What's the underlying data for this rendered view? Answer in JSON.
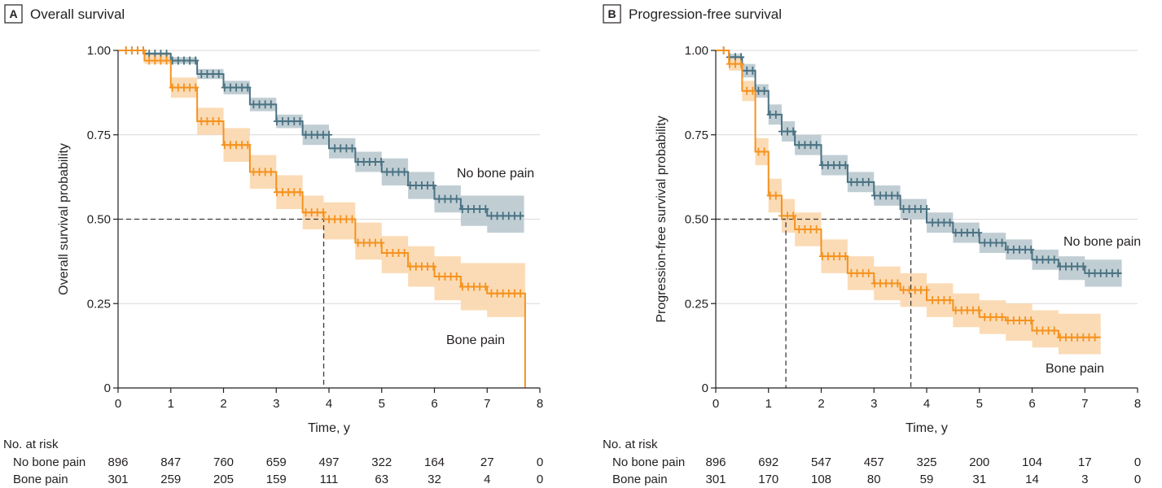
{
  "colors": {
    "no_bone_pain": "#4a7282",
    "no_bone_pain_band": "#b9c9cf",
    "bone_pain": "#f5921e",
    "bone_pain_band": "#fbd7ad"
  },
  "chart_data": [
    {
      "type": "line",
      "panel_letter": "A",
      "title": "Overall survival",
      "xlabel": "Time, y",
      "ylabel": "Overall survival probability",
      "xlim": [
        0,
        8
      ],
      "ylim": [
        0,
        1
      ],
      "x_ticks": [
        "0",
        "1",
        "2",
        "3",
        "4",
        "5",
        "6",
        "7",
        "8"
      ],
      "y_ticks": [
        "0",
        "0.25",
        "0.50",
        "0.75",
        "1.00"
      ],
      "grid": "horizontal",
      "series": [
        {
          "name": "No bone pain",
          "color": "#4a7282",
          "x": [
            0,
            0.5,
            1,
            1.5,
            2,
            2.5,
            3,
            3.5,
            4,
            4.5,
            5,
            5.5,
            6,
            6.5,
            7,
            7.5,
            7.7
          ],
          "y": [
            1.0,
            0.99,
            0.97,
            0.93,
            0.89,
            0.84,
            0.79,
            0.75,
            0.71,
            0.67,
            0.64,
            0.6,
            0.56,
            0.53,
            0.51,
            0.51,
            0.51
          ],
          "ci_low": [
            1.0,
            0.985,
            0.96,
            0.915,
            0.87,
            0.82,
            0.77,
            0.72,
            0.68,
            0.64,
            0.6,
            0.56,
            0.52,
            0.48,
            0.46,
            0.46,
            0.46
          ],
          "ci_high": [
            1.0,
            0.995,
            0.98,
            0.945,
            0.91,
            0.86,
            0.81,
            0.78,
            0.74,
            0.7,
            0.68,
            0.64,
            0.6,
            0.57,
            0.57,
            0.57,
            0.57
          ]
        },
        {
          "name": "Bone pain",
          "color": "#f5921e",
          "x": [
            0,
            0.5,
            1,
            1.5,
            2,
            2.5,
            3,
            3.5,
            3.9,
            4.5,
            5,
            5.5,
            6,
            6.5,
            7,
            7.5,
            7.72,
            7.72
          ],
          "y": [
            1.0,
            0.97,
            0.89,
            0.79,
            0.72,
            0.64,
            0.58,
            0.52,
            0.5,
            0.43,
            0.4,
            0.36,
            0.33,
            0.3,
            0.28,
            0.28,
            0.28,
            0.0
          ],
          "ci_low": [
            1.0,
            0.96,
            0.86,
            0.75,
            0.67,
            0.59,
            0.53,
            0.47,
            0.44,
            0.38,
            0.34,
            0.3,
            0.26,
            0.23,
            0.21,
            0.21,
            0.21,
            0.21
          ],
          "ci_high": [
            1.0,
            0.99,
            0.92,
            0.83,
            0.77,
            0.69,
            0.63,
            0.57,
            0.55,
            0.49,
            0.45,
            0.42,
            0.39,
            0.37,
            0.37,
            0.37,
            0.37,
            0.37
          ]
        }
      ],
      "medians": [
        3.9
      ],
      "series_labels": [
        "No bone pain",
        "Bone pain"
      ],
      "at_risk": {
        "heading": "No. at risk",
        "rows": [
          {
            "label": "No bone pain",
            "values": [
              "896",
              "847",
              "760",
              "659",
              "497",
              "322",
              "164",
              "27",
              "0"
            ]
          },
          {
            "label": "Bone pain",
            "values": [
              "301",
              "259",
              "205",
              "159",
              "111",
              "63",
              "32",
              "4",
              "0"
            ]
          }
        ]
      }
    },
    {
      "type": "line",
      "panel_letter": "B",
      "title": "Progression-free survival",
      "xlabel": "Time, y",
      "ylabel": "Progression-free survival probability",
      "xlim": [
        0,
        8
      ],
      "ylim": [
        0,
        1
      ],
      "x_ticks": [
        "0",
        "1",
        "2",
        "3",
        "4",
        "5",
        "6",
        "7",
        "8"
      ],
      "y_ticks": [
        "0",
        "0.25",
        "0.50",
        "0.75",
        "1.00"
      ],
      "grid": "horizontal",
      "series": [
        {
          "name": "No bone pain",
          "color": "#4a7282",
          "x": [
            0,
            0.25,
            0.5,
            0.75,
            1,
            1.25,
            1.5,
            2,
            2.5,
            3,
            3.5,
            4,
            4.5,
            5,
            5.5,
            6,
            6.5,
            7,
            7.5,
            7.7
          ],
          "y": [
            1.0,
            0.98,
            0.94,
            0.88,
            0.81,
            0.76,
            0.72,
            0.66,
            0.61,
            0.57,
            0.53,
            0.49,
            0.46,
            0.43,
            0.41,
            0.38,
            0.36,
            0.34,
            0.34,
            0.34
          ],
          "ci_low": [
            1.0,
            0.97,
            0.92,
            0.86,
            0.78,
            0.73,
            0.69,
            0.63,
            0.58,
            0.54,
            0.5,
            0.46,
            0.43,
            0.4,
            0.38,
            0.35,
            0.32,
            0.3,
            0.3,
            0.3
          ],
          "ci_high": [
            1.0,
            0.99,
            0.96,
            0.9,
            0.84,
            0.79,
            0.75,
            0.69,
            0.64,
            0.6,
            0.56,
            0.52,
            0.49,
            0.46,
            0.44,
            0.41,
            0.39,
            0.38,
            0.38,
            0.38
          ]
        },
        {
          "name": "Bone pain",
          "color": "#f5921e",
          "x": [
            0,
            0.25,
            0.5,
            0.75,
            1,
            1.25,
            1.5,
            2,
            2.5,
            3,
            3.5,
            4,
            4.5,
            5,
            5.5,
            6,
            6.5,
            7,
            7.3
          ],
          "y": [
            1.0,
            0.96,
            0.88,
            0.7,
            0.57,
            0.51,
            0.47,
            0.39,
            0.34,
            0.31,
            0.29,
            0.26,
            0.23,
            0.21,
            0.2,
            0.17,
            0.15,
            0.15,
            0.15
          ],
          "ci_low": [
            1.0,
            0.94,
            0.85,
            0.66,
            0.52,
            0.46,
            0.42,
            0.34,
            0.29,
            0.26,
            0.24,
            0.21,
            0.18,
            0.16,
            0.14,
            0.12,
            0.1,
            0.1,
            0.1
          ],
          "ci_high": [
            1.0,
            0.98,
            0.91,
            0.74,
            0.62,
            0.56,
            0.52,
            0.44,
            0.39,
            0.36,
            0.34,
            0.31,
            0.28,
            0.26,
            0.25,
            0.23,
            0.22,
            0.22,
            0.22
          ]
        }
      ],
      "medians": [
        1.33,
        3.7
      ],
      "series_labels": [
        "No bone pain",
        "Bone pain"
      ],
      "at_risk": {
        "heading": "No. at risk",
        "rows": [
          {
            "label": "No bone pain",
            "values": [
              "896",
              "692",
              "547",
              "457",
              "325",
              "200",
              "104",
              "17",
              "0"
            ]
          },
          {
            "label": "Bone pain",
            "values": [
              "301",
              "170",
              "108",
              "80",
              "59",
              "31",
              "14",
              "3",
              "0"
            ]
          }
        ]
      }
    }
  ]
}
